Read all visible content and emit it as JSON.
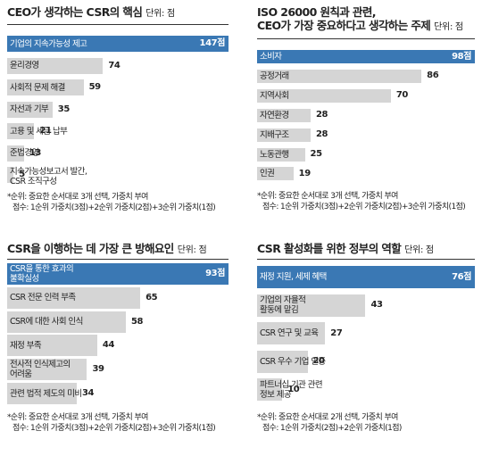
{
  "chart_data": [
    {
      "type": "bar",
      "title": "CEO가 생각하는 CSR의 핵심",
      "unit": "단위: 점",
      "categories": [
        "기업의 지속가능성 제고",
        "윤리경영",
        "사회적 문제 해결",
        "자선과 기부",
        "고용 및 세금 납부",
        "준법경영",
        "지속가능성보고서 발간, CSR 조직구성"
      ],
      "category_lines": [
        [
          "기업의 지속가능성 제고"
        ],
        [
          "윤리경영"
        ],
        [
          "사회적 문제 해결"
        ],
        [
          "자선과 기부"
        ],
        [
          "고용 및 세금 납부"
        ],
        [
          "준법경영"
        ],
        [
          "지속가능성보고서 발간,",
          "CSR 조직구성"
        ]
      ],
      "values": [
        147,
        74,
        59,
        35,
        21,
        13,
        5
      ],
      "value_labels": [
        "147점",
        "74",
        "59",
        "35",
        "21",
        "13",
        "5"
      ],
      "highlight": 0,
      "note": [
        "*순위: 중요한 순서대로 3개 선택, 가중치 부여",
        "점수: 1순위 가중치(3점)+2순위 가중치(2점)+3순위 가중치(1점)"
      ]
    },
    {
      "type": "bar",
      "title": "ISO 26000 원칙과 관련, CEO가 가장 중요하다고 생각하는 주제",
      "title_lines": [
        "ISO 26000 원칙과 관련,",
        "CEO가 가장 중요하다고 생각하는 주제"
      ],
      "unit": "단위: 점",
      "categories": [
        "소비자",
        "공정거래",
        "지역사회",
        "자연환경",
        "지배구조",
        "노동관행",
        "인권"
      ],
      "category_lines": [
        [
          "소비자"
        ],
        [
          "공정거래"
        ],
        [
          "지역사회"
        ],
        [
          "자연환경"
        ],
        [
          "지배구조"
        ],
        [
          "노동관행"
        ],
        [
          "인권"
        ]
      ],
      "values": [
        98,
        86,
        70,
        28,
        28,
        25,
        19
      ],
      "value_labels": [
        "98점",
        "86",
        "70",
        "28",
        "28",
        "25",
        "19"
      ],
      "highlight": 0,
      "note": [
        "*순위: 중요한 순서대로 3개 선택, 가중치 부여",
        "점수: 1순위 가중치(3점)+2순위 가중치(2점)+3순위 가중치(1점)"
      ]
    },
    {
      "type": "bar",
      "title": "CSR을 이행하는 데 가장 큰 방해요인",
      "unit": "단위: 점",
      "categories": [
        "CSR을 통한 효과의 불확실성",
        "CSR 전문 인력 부족",
        "CSR에 대한 사회 인식",
        "재정 부족",
        "전사적 인식제고의 어려움",
        "관련 법적 제도의 미비"
      ],
      "category_lines": [
        [
          "CSR을 통한 효과의",
          "불확실성"
        ],
        [
          "CSR 전문 인력 부족"
        ],
        [
          "CSR에 대한 사회 인식"
        ],
        [
          "재정 부족"
        ],
        [
          "전사적 인식제고의",
          "어려움"
        ],
        [
          "관련 법적 제도의 미비"
        ]
      ],
      "values": [
        93,
        65,
        58,
        44,
        39,
        34
      ],
      "value_labels": [
        "93점",
        "65",
        "58",
        "44",
        "39",
        "34"
      ],
      "highlight": 0,
      "note": [
        "*순위: 중요한 순서대로 3개 선택, 가중치 부여",
        "점수: 1순위 가중치(3점)+2순위 가중치(2점)+3순위 가중치(1점)"
      ]
    },
    {
      "type": "bar",
      "title": "CSR 활성화를 위한 정부의 역할",
      "unit": "단위: 점",
      "categories": [
        "재정 지원, 세제 혜택",
        "기업의 자율적 활동에 맡김",
        "CSR 연구 및 교육",
        "CSR 우수 기업 인증",
        "파트너십 기관 관련 정보 제공"
      ],
      "category_lines": [
        [
          "재정 지원, 세제 혜택"
        ],
        [
          "기업의 자율적",
          "활동에 맡김"
        ],
        [
          "CSR 연구 및 교육"
        ],
        [
          "CSR 우수 기업 인증"
        ],
        [
          "파트너십 기관 관련",
          "정보 제공"
        ]
      ],
      "values": [
        76,
        43,
        27,
        20,
        10
      ],
      "value_labels": [
        "76점",
        "43",
        "27",
        "20",
        "10"
      ],
      "highlight": 0,
      "note": [
        "*순위: 중요한 순서대로 2개 선택, 가중치 부여",
        "점수: 1순위 가중치(2점)+2순위 가중치(1점)"
      ]
    }
  ],
  "colors": {
    "highlight_bar": "#3a78b4",
    "bar": "#d5d5d5",
    "text": "#222222",
    "highlight_text": "#ffffff"
  }
}
